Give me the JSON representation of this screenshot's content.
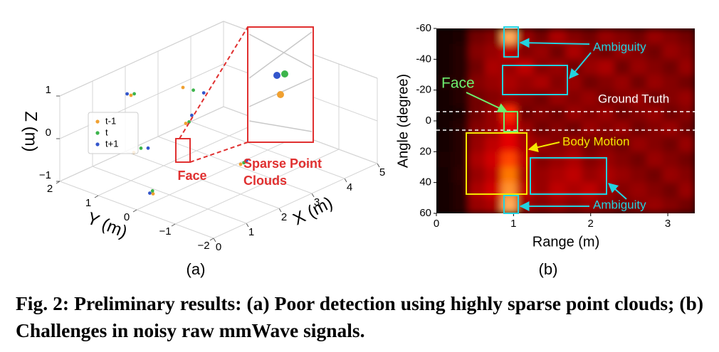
{
  "chart_data": [
    {
      "type": "scatter3d",
      "label": "(a)",
      "xlabel": "X (m)",
      "ylabel": "Y (m)",
      "zlabel": "Z (m)",
      "xlim": [
        0,
        5
      ],
      "ylim": [
        -2,
        2
      ],
      "zlim": [
        -1,
        1
      ],
      "xticks": [
        0,
        1,
        2,
        3,
        4,
        5
      ],
      "yticks": [
        {
          "value": -2,
          "label": "−2"
        },
        {
          "value": -1,
          "label": "−1"
        },
        0,
        1,
        2
      ],
      "zticks": [
        {
          "value": -1,
          "label": "−1"
        },
        0,
        1
      ],
      "legend": "left",
      "grid": true,
      "series": [
        {
          "name": "t-1",
          "color": "#f0a030",
          "x": [
            1,
            2,
            1.5,
            0.5,
            2,
            4,
            0.5,
            5,
            3
          ],
          "y": [
            1,
            0.5,
            0,
            0.5,
            -1,
            0,
            0,
            0,
            -1.5
          ],
          "z": [
            1,
            1,
            0.5,
            0,
            -0.3,
            0,
            -0.8,
            -0.5,
            0.2
          ]
        },
        {
          "name": "t",
          "color": "#3cb44b",
          "x": [
            1.1,
            2.2,
            1.6,
            0.6,
            2.1,
            4.1,
            0.6,
            5,
            3.1
          ],
          "y": [
            1,
            0.4,
            0,
            0.4,
            -1,
            0,
            0.1,
            -0.1,
            -1.5
          ],
          "z": [
            1,
            0.9,
            0.5,
            0.1,
            -0.3,
            0.05,
            -0.8,
            -0.45,
            0.2
          ]
        },
        {
          "name": "t+1",
          "color": "#3356cc",
          "x": [
            1,
            2.4,
            1.8,
            0.7,
            2.3,
            4.3,
            0.4,
            5,
            3.2
          ],
          "y": [
            1.1,
            0.3,
            0.1,
            0.3,
            -0.9,
            0,
            0,
            0,
            -1.4
          ],
          "z": [
            1,
            0.8,
            0.55,
            0.1,
            -0.35,
            0.1,
            -0.75,
            -0.5,
            0.25
          ]
        }
      ],
      "annotations": [
        "Face",
        "Sparse Point",
        "Clouds"
      ]
    },
    {
      "type": "heatmap",
      "label": "(b)",
      "xlabel": "Range (m)",
      "ylabel": "Angle (degree)",
      "xlim": [
        0,
        3.35
      ],
      "ylim": [
        -60,
        60
      ],
      "xticks": [
        0,
        1,
        2,
        3
      ],
      "yticks": [
        -60,
        -40,
        -20,
        0,
        20,
        40,
        60
      ],
      "z": [
        [
          0.05,
          0.08,
          0.3,
          0.35,
          0.95,
          0.4,
          0.3,
          0.45,
          0.35,
          0.3,
          0.4,
          0.35,
          0.3,
          0.4,
          0.35,
          0.3
        ],
        [
          0.05,
          0.1,
          0.35,
          0.4,
          0.5,
          0.35,
          0.4,
          0.3,
          0.45,
          0.35,
          0.3,
          0.4,
          0.35,
          0.3,
          0.4,
          0.35
        ],
        [
          0.05,
          0.1,
          0.3,
          0.45,
          0.4,
          0.5,
          0.35,
          0.4,
          0.3,
          0.4,
          0.45,
          0.3,
          0.4,
          0.35,
          0.3,
          0.4
        ],
        [
          0.08,
          0.1,
          0.35,
          0.4,
          0.45,
          0.4,
          0.45,
          0.35,
          0.4,
          0.3,
          0.35,
          0.4,
          0.3,
          0.4,
          0.35,
          0.3
        ],
        [
          0.05,
          0.1,
          0.3,
          0.35,
          0.4,
          0.35,
          0.3,
          0.4,
          0.35,
          0.4,
          0.3,
          0.35,
          0.4,
          0.3,
          0.35,
          0.4
        ],
        [
          0.05,
          0.08,
          0.3,
          0.4,
          0.7,
          0.3,
          0.35,
          0.3,
          0.4,
          0.35,
          0.4,
          0.3,
          0.35,
          0.4,
          0.3,
          0.35
        ],
        [
          0.05,
          0.1,
          0.35,
          0.4,
          0.6,
          0.4,
          0.3,
          0.35,
          0.3,
          0.4,
          0.35,
          0.4,
          0.3,
          0.35,
          0.4,
          0.3
        ],
        [
          0.05,
          0.1,
          0.4,
          0.5,
          0.6,
          0.45,
          0.4,
          0.35,
          0.4,
          0.3,
          0.35,
          0.3,
          0.4,
          0.35,
          0.3,
          0.4
        ],
        [
          0.08,
          0.1,
          0.45,
          0.55,
          0.75,
          0.5,
          0.35,
          0.4,
          0.45,
          0.35,
          0.4,
          0.35,
          0.3,
          0.4,
          0.35,
          0.3
        ],
        [
          0.05,
          0.12,
          0.4,
          0.5,
          0.85,
          0.45,
          0.4,
          0.45,
          0.5,
          0.4,
          0.45,
          0.4,
          0.35,
          0.3,
          0.4,
          0.35
        ],
        [
          0.05,
          0.1,
          0.45,
          0.55,
          0.9,
          0.5,
          0.4,
          0.5,
          0.45,
          0.5,
          0.4,
          0.35,
          0.4,
          0.35,
          0.3,
          0.4
        ],
        [
          0.05,
          0.1,
          0.4,
          0.45,
          0.95,
          0.4,
          0.35,
          0.4,
          0.35,
          0.4,
          0.35,
          0.3,
          0.35,
          0.4,
          0.35,
          0.3
        ]
      ],
      "annotations": [
        "Ambiguity",
        "Face",
        "Ground Truth",
        "Body Motion",
        "Ambiguity"
      ]
    }
  ],
  "caption": "Fig. 2: Preliminary results: (a) Poor detection using highly sparse point clouds; (b) Challenges in noisy raw mmWave signals."
}
